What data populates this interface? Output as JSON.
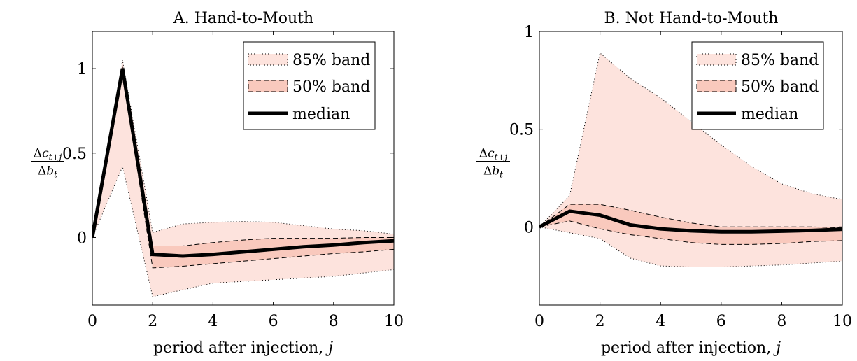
{
  "chart_data": [
    {
      "type": "line",
      "title": "A. Hand-to-Mouth",
      "xlabel": "period after injection, j",
      "ylabel": {
        "numerator": "Δc",
        "numerator_sub": "t+j",
        "denominator": "Δb",
        "denominator_sub": "t"
      },
      "xlim": [
        0,
        10
      ],
      "ylim": [
        -0.4,
        1.22
      ],
      "x_ticks": [
        0,
        2,
        4,
        6,
        8,
        10
      ],
      "y_ticks": [
        {
          "value": 0,
          "label": "0"
        },
        {
          "value": 0.5,
          "label": "0.5"
        },
        {
          "value": 1,
          "label": "1"
        }
      ],
      "legend": [
        "85% band",
        "50% band",
        "median"
      ],
      "legend_position": "top-right",
      "x": [
        0,
        1,
        2,
        3,
        4,
        5,
        6,
        7,
        8,
        9,
        10
      ],
      "series": [
        {
          "name": "median",
          "values": [
            0,
            1.0,
            -0.1,
            -0.11,
            -0.1,
            -0.085,
            -0.07,
            -0.055,
            -0.045,
            -0.03,
            -0.02
          ]
        },
        {
          "name": "50% band lower",
          "values": [
            0,
            0.97,
            -0.18,
            -0.17,
            -0.155,
            -0.14,
            -0.125,
            -0.11,
            -0.095,
            -0.085,
            -0.07
          ]
        },
        {
          "name": "50% band upper",
          "values": [
            0,
            1.02,
            -0.05,
            -0.05,
            -0.03,
            -0.015,
            -0.005,
            -0.005,
            -0.005,
            0,
            0
          ]
        },
        {
          "name": "85% band lower",
          "values": [
            0,
            0.42,
            -0.35,
            -0.31,
            -0.27,
            -0.26,
            -0.25,
            -0.24,
            -0.23,
            -0.21,
            -0.19
          ]
        },
        {
          "name": "85% band upper",
          "values": [
            0,
            1.05,
            0.03,
            0.08,
            0.09,
            0.095,
            0.09,
            0.07,
            0.05,
            0.04,
            0.02
          ]
        }
      ]
    },
    {
      "type": "line",
      "title": "B. Not Hand-to-Mouth",
      "xlabel": "period after injection, j",
      "ylabel": {
        "numerator": "Δc",
        "numerator_sub": "t+j",
        "denominator": "Δb",
        "denominator_sub": "t"
      },
      "xlim": [
        0,
        10
      ],
      "ylim": [
        -0.4,
        1.0
      ],
      "x_ticks": [
        0,
        2,
        4,
        6,
        8,
        10
      ],
      "y_ticks": [
        {
          "value": 0,
          "label": "0"
        },
        {
          "value": 0.5,
          "label": "0.5"
        },
        {
          "value": 1,
          "label": "1"
        }
      ],
      "legend": [
        "85% band",
        "50% band",
        "median"
      ],
      "legend_position": "top-right",
      "x": [
        0,
        1,
        2,
        3,
        4,
        5,
        6,
        7,
        8,
        9,
        10
      ],
      "series": [
        {
          "name": "median",
          "values": [
            0,
            0.08,
            0.06,
            0.01,
            -0.01,
            -0.02,
            -0.025,
            -0.025,
            -0.022,
            -0.018,
            -0.012
          ]
        },
        {
          "name": "50% band lower",
          "values": [
            0,
            0.03,
            -0.01,
            -0.04,
            -0.06,
            -0.08,
            -0.09,
            -0.09,
            -0.085,
            -0.075,
            -0.07
          ]
        },
        {
          "name": "50% band upper",
          "values": [
            0,
            0.115,
            0.115,
            0.085,
            0.05,
            0.02,
            0.0,
            0.0,
            0.0,
            0.0,
            -0.005
          ]
        },
        {
          "name": "85% band lower",
          "values": [
            0,
            -0.03,
            -0.06,
            -0.16,
            -0.2,
            -0.205,
            -0.205,
            -0.2,
            -0.195,
            -0.185,
            -0.175
          ]
        },
        {
          "name": "85% band upper",
          "values": [
            0,
            0.16,
            0.89,
            0.76,
            0.66,
            0.54,
            0.42,
            0.31,
            0.22,
            0.17,
            0.14
          ]
        }
      ]
    }
  ],
  "colors": {
    "band85": "#fde3dd",
    "band50": "#f9c9bd",
    "median": "#000000"
  }
}
